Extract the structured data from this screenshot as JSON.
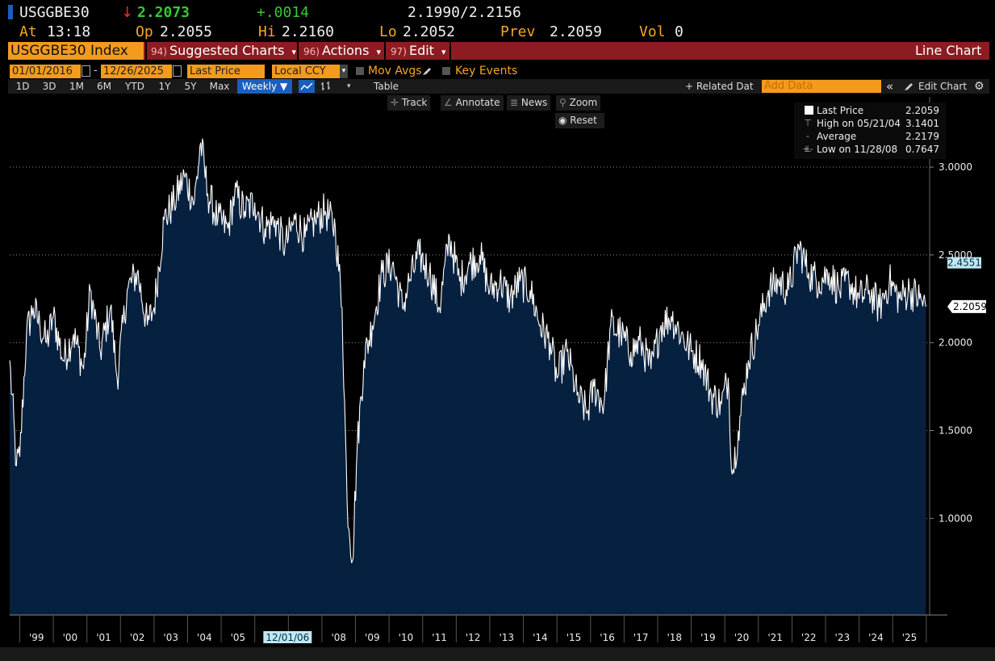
{
  "quote": {
    "ticker": "USGGBE30",
    "arrow": "↓",
    "last": "2.2073",
    "change": "+.0014",
    "bid_ask": "2.1990/2.2156",
    "at_label": "At",
    "time": "13:18",
    "op_label": "Op",
    "open": "2.2055",
    "hi_label": "Hi",
    "high": "2.2160",
    "lo_label": "Lo",
    "low": "2.2052",
    "prev_label": "Prev",
    "prev": "2.2059",
    "vol_label": "Vol",
    "volume": "0"
  },
  "menu": {
    "security": "USGGBE30 Index",
    "suggested_num": "94)",
    "suggested": "Suggested Charts",
    "actions_num": "96)",
    "actions": "Actions",
    "edit_num": "97)",
    "edit": "Edit",
    "chart_type": "Line Chart",
    "caret": "▾"
  },
  "controls": {
    "start_date": "01/01/2016",
    "dash": "-",
    "end_date": "12/26/2025",
    "field": "Last Price",
    "currency": "Local CCY",
    "mov_avgs": "Mov Avgs",
    "key_events": "Key Events"
  },
  "range": {
    "buttons": [
      "1D",
      "3D",
      "1M",
      "6M",
      "YTD",
      "1Y",
      "5Y",
      "Max"
    ],
    "frequency": "Weekly ▼",
    "table": "Table",
    "related": "+ Related Dat",
    "add_data_placeholder": "Add Data",
    "collapse": "«",
    "edit_chart": "Edit Chart"
  },
  "chart_tools": {
    "track": "Track",
    "annotate": "Annotate",
    "news": "News",
    "zoom": "Zoom",
    "reset": "Reset"
  },
  "legend": {
    "last_label": "Last Price",
    "last_value": "2.2059",
    "high_label": "High on 05/21/04",
    "high_value": "3.1401",
    "avg_label": "Average",
    "avg_value": "2.2179",
    "low_label": "Low on 11/28/08",
    "low_value": "0.7647"
  },
  "colors": {
    "area_fill": "#06203f",
    "line": "#ffffff",
    "orange": "#f29b1c",
    "menubar": "#8c1c22",
    "selected": "#1a5fbf"
  },
  "chart_data": {
    "type": "area",
    "series": [
      {
        "name": "Last Price",
        "x": [
          1998.7,
          1998.9,
          1999.0,
          1999.2,
          1999.4,
          1999.6,
          1999.8,
          2000.0,
          2000.3,
          2000.6,
          2000.9,
          2001.1,
          2001.4,
          2001.7,
          2001.9,
          2002.2,
          2002.5,
          2002.8,
          2003.0,
          2003.3,
          2003.6,
          2003.9,
          2004.2,
          2004.39,
          2004.6,
          2004.9,
          2005.2,
          2005.4,
          2005.7,
          2006.0,
          2006.3,
          2006.6,
          2006.9,
          2007.2,
          2007.5,
          2007.8,
          2008.1,
          2008.4,
          2008.6,
          2008.75,
          2008.91,
          2009.05,
          2009.25,
          2009.5,
          2009.8,
          2010.1,
          2010.4,
          2010.6,
          2010.9,
          2011.2,
          2011.5,
          2011.8,
          2012.1,
          2012.4,
          2012.7,
          2013.0,
          2013.3,
          2013.6,
          2013.9,
          2014.2,
          2014.5,
          2014.8,
          2015.0,
          2015.3,
          2015.6,
          2015.9,
          2016.1,
          2016.4,
          2016.6,
          2016.9,
          2017.2,
          2017.5,
          2017.8,
          2018.1,
          2018.4,
          2018.7,
          2019.0,
          2019.3,
          2019.6,
          2019.9,
          2020.1,
          2020.22,
          2020.4,
          2020.7,
          2021.0,
          2021.3,
          2021.6,
          2021.9,
          2022.2,
          2022.5,
          2022.8,
          2023.1,
          2023.4,
          2023.7,
          2024.0,
          2024.3,
          2024.6,
          2024.9,
          2025.2,
          2025.5,
          2025.8,
          2025.99
        ],
        "values": [
          1.9,
          1.3,
          1.35,
          2.05,
          2.2,
          2.1,
          2.0,
          2.15,
          1.9,
          2.05,
          1.85,
          2.3,
          1.95,
          2.2,
          1.8,
          2.3,
          2.4,
          2.1,
          2.2,
          2.7,
          2.8,
          2.95,
          2.8,
          3.14,
          2.85,
          2.7,
          2.65,
          2.85,
          2.75,
          2.8,
          2.65,
          2.7,
          2.55,
          2.7,
          2.6,
          2.7,
          2.75,
          2.65,
          2.2,
          1.1,
          0.76,
          1.4,
          1.9,
          2.1,
          2.4,
          2.45,
          2.2,
          2.35,
          2.5,
          2.4,
          2.2,
          2.6,
          2.35,
          2.45,
          2.5,
          2.3,
          2.35,
          2.25,
          2.35,
          2.3,
          2.1,
          2.0,
          1.8,
          1.95,
          1.7,
          1.6,
          1.75,
          1.65,
          2.1,
          2.05,
          1.95,
          2.0,
          1.85,
          2.1,
          2.15,
          2.05,
          1.95,
          1.9,
          1.7,
          1.65,
          1.8,
          1.25,
          1.5,
          1.9,
          2.1,
          2.3,
          2.35,
          2.3,
          2.55,
          2.4,
          2.35,
          2.4,
          2.3,
          2.35,
          2.25,
          2.3,
          2.2,
          2.35,
          2.25,
          2.3,
          2.25,
          2.2059
        ]
      }
    ],
    "ylim": [
      0.45,
      3.4
    ],
    "xlim": [
      1998.7,
      2026.1
    ],
    "y_ticks": [
      "1.0000",
      "1.5000",
      "2.0000",
      "2.5000",
      "3.0000"
    ],
    "y_tick_values": [
      1.0,
      1.5,
      2.0,
      2.5,
      3.0
    ],
    "x_ticks": [
      "'99",
      "'00",
      "'01",
      "'02",
      "'03",
      "'04",
      "'05",
      "'06",
      "'08",
      "'09",
      "'10",
      "'11",
      "'12",
      "'13",
      "'14",
      "'15",
      "'16",
      "'17",
      "'18",
      "'19",
      "'20",
      "'21",
      "'22",
      "'23",
      "'24",
      "'25"
    ],
    "x_tick_values": [
      1999.5,
      2000.5,
      2001.5,
      2002.5,
      2003.5,
      2004.5,
      2005.5,
      2006.5,
      2008.5,
      2009.5,
      2010.5,
      2011.5,
      2012.5,
      2013.5,
      2014.5,
      2015.5,
      2016.5,
      2017.5,
      2018.5,
      2019.5,
      2020.5,
      2021.5,
      2022.5,
      2023.5,
      2024.5,
      2025.5
    ],
    "cursor_date": "12/01/06",
    "cursor_x": 2007.0,
    "axis_markers": [
      {
        "label": "2.4551",
        "value": 2.4551
      },
      {
        "label": "2.2059",
        "value": 2.2059
      }
    ],
    "grid": true,
    "legend_position": "top-right"
  }
}
